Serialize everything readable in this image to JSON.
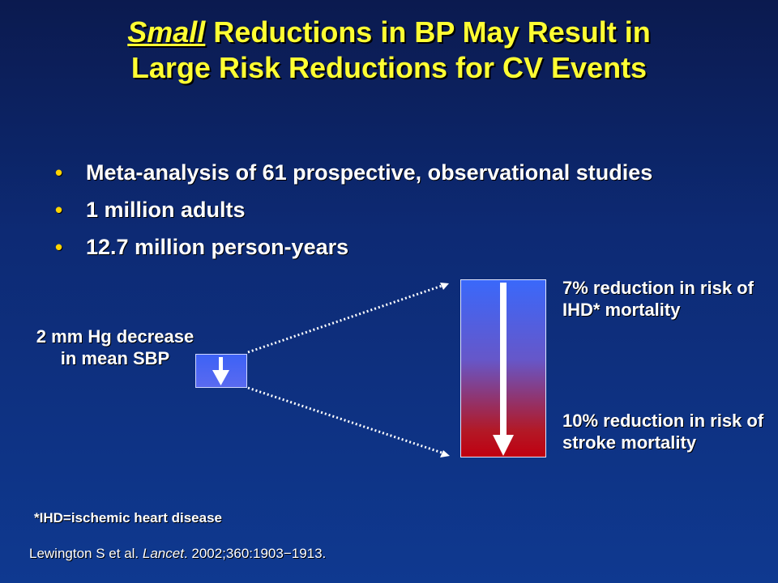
{
  "title": {
    "line1_emphasis": "Small",
    "line1_rest": " Reductions in BP May Result in",
    "line2": "Large Risk Reductions for CV Events"
  },
  "bullets": [
    {
      "text": "Meta-analysis of 61 prospective, observational studies"
    },
    {
      "text": "1 million adults"
    },
    {
      "text": "12.7 million person-years"
    }
  ],
  "diagram": {
    "left_label": "2 mm Hg decrease in mean SBP",
    "result_ihd": "7% reduction in risk of IHD* mortality",
    "result_stroke": "10% reduction in risk of stroke mortality"
  },
  "footnote": "*IHD=ischemic heart disease",
  "citation": {
    "authors": "Lewington S et al. ",
    "journal": "Lancet",
    "details": ". 2002;360:1903−1913."
  },
  "colors": {
    "title": "#ffff33",
    "bullet_dot": "#ffd400"
  }
}
